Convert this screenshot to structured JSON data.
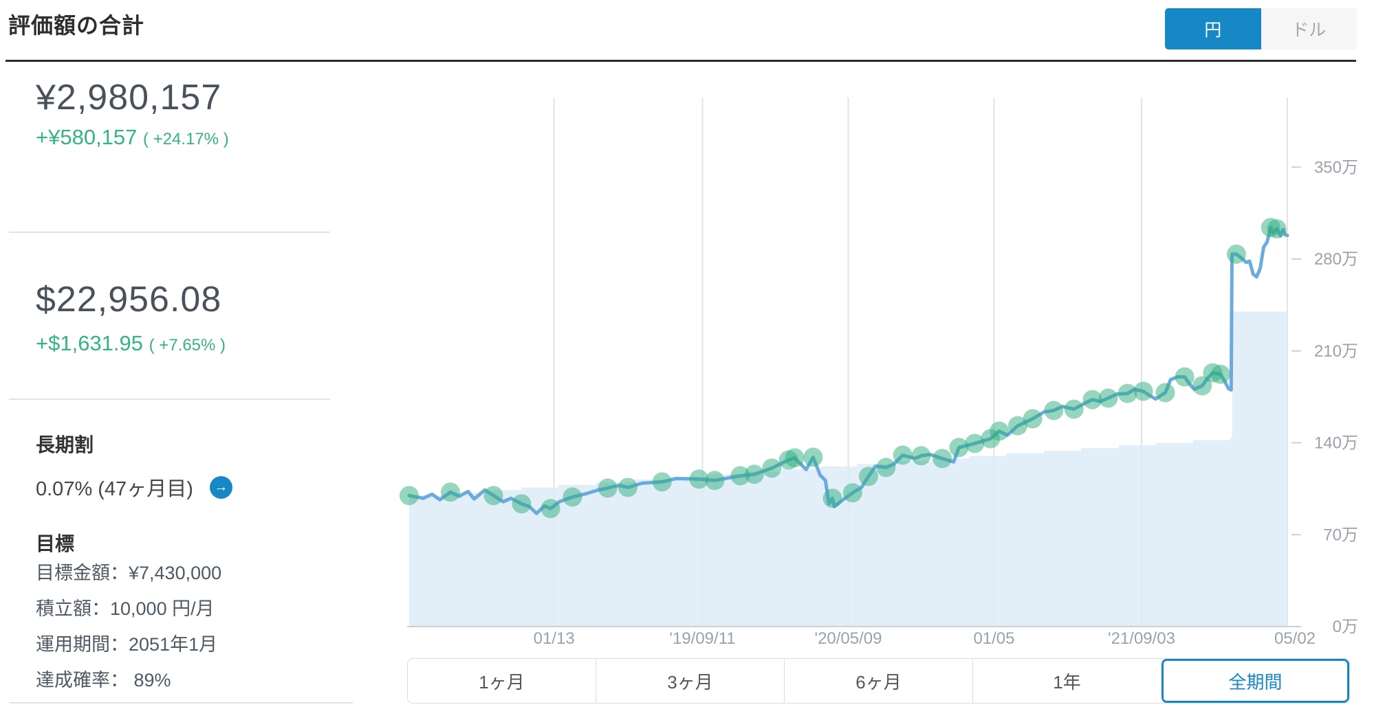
{
  "header": {
    "title": "評価額の合計",
    "currency_toggle": {
      "yen_label": "円",
      "dollar_label": "ドル",
      "active": "yen"
    }
  },
  "summary": {
    "yen": {
      "value": "¥2,980,157",
      "change": "+¥580,157",
      "change_pct": "( +24.17% )"
    },
    "usd": {
      "value": "$22,956.08",
      "change": "+$1,631.95",
      "change_pct": "( +7.65% )"
    }
  },
  "long_term_discount": {
    "heading": "長期割",
    "value": "0.07% (47ヶ月目)",
    "arrow_icon": "→"
  },
  "goal": {
    "heading": "目標",
    "target_amount": "目標金額：¥7,430,000",
    "monthly_deposit": "積立額：10,000 円/月",
    "period": "運用期間：2051年1月",
    "probability": "達成確率： 89%"
  },
  "colors": {
    "accent_blue": "#1887c5",
    "gain_green": "#34b384",
    "line_blue": "#63a7db",
    "area_blue": "#deecf7"
  },
  "period_buttons": [
    {
      "label": "1ヶ月",
      "active": false
    },
    {
      "label": "3ヶ月",
      "active": false
    },
    {
      "label": "6ヶ月",
      "active": false
    },
    {
      "label": "1年",
      "active": false
    },
    {
      "label": "全期間",
      "active": true
    }
  ],
  "chart_data": {
    "type": "line",
    "unit": "万円 (10k JPY)",
    "ylim": [
      0,
      403
    ],
    "grid": "vertical-only",
    "legend": "none",
    "y_ticks": [
      {
        "v": 0,
        "label": "0万"
      },
      {
        "v": 70,
        "label": "70万"
      },
      {
        "v": 140,
        "label": "140万"
      },
      {
        "v": 210,
        "label": "210万"
      },
      {
        "v": 280,
        "label": "280万"
      },
      {
        "v": 350,
        "label": "350万"
      }
    ],
    "x_ticks": [
      {
        "t": 0.165,
        "label": "01/13"
      },
      {
        "t": 0.334,
        "label": "'19/09/11"
      },
      {
        "t": 0.5,
        "label": "'20/05/09"
      },
      {
        "t": 0.666,
        "label": "01/05"
      },
      {
        "t": 0.834,
        "label": "'21/09/03"
      },
      {
        "t": 1.0,
        "label": "05/02"
      }
    ],
    "valuation_series": [
      [
        0.0,
        99.8
      ],
      [
        0.016,
        97.7
      ],
      [
        0.026,
        100.8
      ],
      [
        0.035,
        96.6
      ],
      [
        0.047,
        102.4
      ],
      [
        0.057,
        99.3
      ],
      [
        0.067,
        102.9
      ],
      [
        0.074,
        97.2
      ],
      [
        0.086,
        104.0
      ],
      [
        0.096,
        99.8
      ],
      [
        0.107,
        95.1
      ],
      [
        0.116,
        97.7
      ],
      [
        0.128,
        93.5
      ],
      [
        0.137,
        91.4
      ],
      [
        0.145,
        86.2
      ],
      [
        0.154,
        91.9
      ],
      [
        0.161,
        89.9
      ],
      [
        0.171,
        95.1
      ],
      [
        0.186,
        98.7
      ],
      [
        0.202,
        101.3
      ],
      [
        0.215,
        104.0
      ],
      [
        0.226,
        105.5
      ],
      [
        0.239,
        107.6
      ],
      [
        0.249,
        106.0
      ],
      [
        0.265,
        109.2
      ],
      [
        0.288,
        110.2
      ],
      [
        0.304,
        112.8
      ],
      [
        0.33,
        112.3
      ],
      [
        0.348,
        111.3
      ],
      [
        0.377,
        114.9
      ],
      [
        0.393,
        116.0
      ],
      [
        0.413,
        120.7
      ],
      [
        0.432,
        126.9
      ],
      [
        0.439,
        128.5
      ],
      [
        0.452,
        119.6
      ],
      [
        0.46,
        129.0
      ],
      [
        0.468,
        115.4
      ],
      [
        0.474,
        111.3
      ],
      [
        0.478,
        93.5
      ],
      [
        0.482,
        97.7
      ],
      [
        0.484,
        91.4
      ],
      [
        0.493,
        96.1
      ],
      [
        0.505,
        101.9
      ],
      [
        0.515,
        106.0
      ],
      [
        0.523,
        114.4
      ],
      [
        0.531,
        122.2
      ],
      [
        0.543,
        121.2
      ],
      [
        0.552,
        123.8
      ],
      [
        0.562,
        130.6
      ],
      [
        0.576,
        128.0
      ],
      [
        0.583,
        130.1
      ],
      [
        0.593,
        131.1
      ],
      [
        0.607,
        128.0
      ],
      [
        0.62,
        125.4
      ],
      [
        0.626,
        136.4
      ],
      [
        0.644,
        139.5
      ],
      [
        0.662,
        143.1
      ],
      [
        0.672,
        148.9
      ],
      [
        0.681,
        145.7
      ],
      [
        0.693,
        153.0
      ],
      [
        0.71,
        158.3
      ],
      [
        0.723,
        163.5
      ],
      [
        0.734,
        164.6
      ],
      [
        0.744,
        167.7
      ],
      [
        0.757,
        165.6
      ],
      [
        0.767,
        169.3
      ],
      [
        0.778,
        172.9
      ],
      [
        0.787,
        171.4
      ],
      [
        0.796,
        174.0
      ],
      [
        0.806,
        177.1
      ],
      [
        0.818,
        177.6
      ],
      [
        0.826,
        180.8
      ],
      [
        0.836,
        179.2
      ],
      [
        0.843,
        176.1
      ],
      [
        0.85,
        173.4
      ],
      [
        0.861,
        178.2
      ],
      [
        0.867,
        188.1
      ],
      [
        0.875,
        190.2
      ],
      [
        0.883,
        190.2
      ],
      [
        0.889,
        184.4
      ],
      [
        0.894,
        180.8
      ],
      [
        0.903,
        183.4
      ],
      [
        0.91,
        189.7
      ],
      [
        0.915,
        193.3
      ],
      [
        0.924,
        192.2
      ],
      [
        0.929,
        186.5
      ],
      [
        0.933,
        181.3
      ],
      [
        0.936,
        180.3
      ],
      [
        0.937,
        283.7
      ],
      [
        0.942,
        283.7
      ],
      [
        0.949,
        280.0
      ],
      [
        0.953,
        277.4
      ],
      [
        0.957,
        278.4
      ],
      [
        0.961,
        268.5
      ],
      [
        0.965,
        266.4
      ],
      [
        0.969,
        272.7
      ],
      [
        0.973,
        288.9
      ],
      [
        0.977,
        293.1
      ],
      [
        0.981,
        304.0
      ],
      [
        0.984,
        299.9
      ],
      [
        0.988,
        303.0
      ],
      [
        0.992,
        297.8
      ],
      [
        0.995,
        302.5
      ],
      [
        0.998,
        298.3
      ],
      [
        1.0,
        298.0
      ]
    ],
    "principal_series": [
      [
        0.0,
        100
      ],
      [
        0.043,
        102
      ],
      [
        0.085,
        104
      ],
      [
        0.128,
        106
      ],
      [
        0.17,
        108
      ],
      [
        0.213,
        110
      ],
      [
        0.255,
        112
      ],
      [
        0.298,
        114
      ],
      [
        0.34,
        116
      ],
      [
        0.383,
        118
      ],
      [
        0.425,
        120
      ],
      [
        0.468,
        122
      ],
      [
        0.51,
        124
      ],
      [
        0.553,
        126
      ],
      [
        0.595,
        128
      ],
      [
        0.638,
        130
      ],
      [
        0.68,
        132
      ],
      [
        0.723,
        134
      ],
      [
        0.765,
        136
      ],
      [
        0.808,
        138
      ],
      [
        0.85,
        140
      ],
      [
        0.893,
        142
      ],
      [
        0.935,
        144
      ],
      [
        0.937,
        240
      ],
      [
        1.0,
        240
      ]
    ],
    "dots_t": [
      0,
      0.052,
      0.096,
      0.128,
      0.161,
      0.186,
      0.226,
      0.249,
      0.288,
      0.33,
      0.351,
      0.377,
      0.393,
      0.415,
      0.432,
      0.439,
      0.46,
      0.482,
      0.505,
      0.523,
      0.543,
      0.562,
      0.583,
      0.607,
      0.626,
      0.644,
      0.662,
      0.672,
      0.693,
      0.71,
      0.734,
      0.757,
      0.778,
      0.796,
      0.818,
      0.836,
      0.861,
      0.883,
      0.903,
      0.915,
      0.924,
      0.942,
      0.981,
      0.988
    ]
  }
}
